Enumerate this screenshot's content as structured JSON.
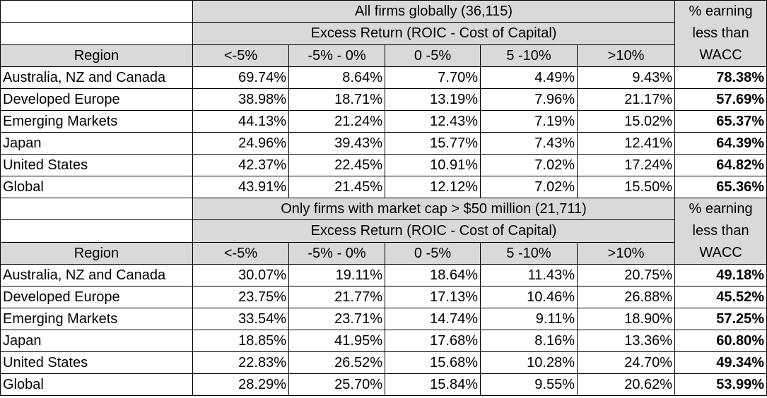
{
  "tables": [
    {
      "title": "All firms globally (36,115)",
      "subtitle": "Excess Return (ROIC - Cost of Capital)",
      "pct_header": [
        "% earning",
        "less than",
        "WACC"
      ],
      "columns": [
        "Region",
        "<-5%",
        "-5% - 0%",
        "0 -5%",
        "5 -10%",
        ">10%"
      ],
      "rows": [
        {
          "region": "Australia, NZ and Canada",
          "values": [
            "69.74%",
            "8.64%",
            "7.70%",
            "4.49%",
            "9.43%"
          ],
          "pct": "78.38%"
        },
        {
          "region": "Developed Europe",
          "values": [
            "38.98%",
            "18.71%",
            "13.19%",
            "7.96%",
            "21.17%"
          ],
          "pct": "57.69%"
        },
        {
          "region": "Emerging Markets",
          "values": [
            "44.13%",
            "21.24%",
            "12.43%",
            "7.19%",
            "15.02%"
          ],
          "pct": "65.37%"
        },
        {
          "region": "Japan",
          "values": [
            "24.96%",
            "39.43%",
            "15.77%",
            "7.43%",
            "12.41%"
          ],
          "pct": "64.39%"
        },
        {
          "region": "United States",
          "values": [
            "42.37%",
            "22.45%",
            "10.91%",
            "7.02%",
            "17.24%"
          ],
          "pct": "64.82%"
        },
        {
          "region": "Global",
          "values": [
            "43.91%",
            "21.45%",
            "12.12%",
            "7.02%",
            "15.50%"
          ],
          "pct": "65.36%"
        }
      ]
    },
    {
      "title": "Only firms with market cap > $50 million (21,711)",
      "subtitle": "Excess Return (ROIC - Cost of Capital)",
      "pct_header": [
        "% earning",
        "less than",
        "WACC"
      ],
      "columns": [
        "Region",
        "<-5%",
        "-5% - 0%",
        "0 -5%",
        "5 -10%",
        ">10%"
      ],
      "rows": [
        {
          "region": "Australia, NZ and Canada",
          "values": [
            "30.07%",
            "19.11%",
            "18.64%",
            "11.43%",
            "20.75%"
          ],
          "pct": "49.18%"
        },
        {
          "region": "Developed Europe",
          "values": [
            "23.75%",
            "21.77%",
            "17.13%",
            "10.46%",
            "26.88%"
          ],
          "pct": "45.52%"
        },
        {
          "region": "Emerging Markets",
          "values": [
            "33.54%",
            "23.71%",
            "14.74%",
            "9.11%",
            "18.90%"
          ],
          "pct": "57.25%"
        },
        {
          "region": "Japan",
          "values": [
            "18.85%",
            "41.95%",
            "17.68%",
            "8.16%",
            "13.36%"
          ],
          "pct": "60.80%"
        },
        {
          "region": "United States",
          "values": [
            "22.83%",
            "26.52%",
            "15.68%",
            "10.28%",
            "24.70%"
          ],
          "pct": "49.34%"
        },
        {
          "region": "Global",
          "values": [
            "28.29%",
            "25.70%",
            "15.84%",
            "9.55%",
            "20.62%"
          ],
          "pct": "53.99%"
        }
      ]
    }
  ]
}
